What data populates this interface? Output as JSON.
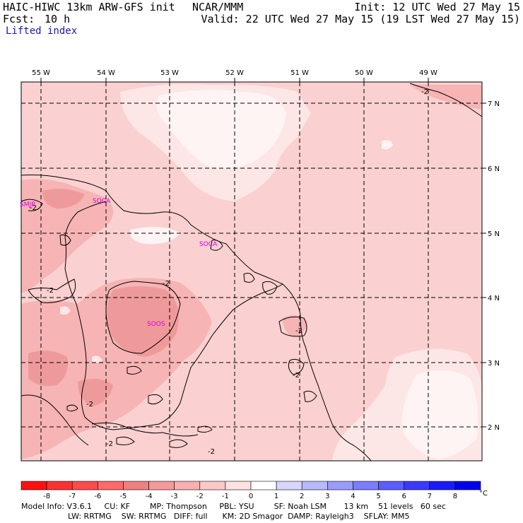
{
  "header": {
    "model": "HAIC-HIWC 13km ARW-GFS init",
    "org": "NCAR/MMM",
    "fcst_label": "Fcst:",
    "fcst_value": "10 h",
    "init": "Init: 12 UTC Wed 27 May 15",
    "valid": "Valid: 22 UTC Wed 27 May 15 (19 LST Wed 27 May 15)",
    "field": "Lifted index"
  },
  "map": {
    "lon_labels": [
      "55 W",
      "54 W",
      "53 W",
      "52 W",
      "51 W",
      "50 W",
      "49 W"
    ],
    "lat_labels": [
      "7 N",
      "6 N",
      "5 N",
      "4 N",
      "3 N",
      "2 N"
    ],
    "stations": [
      "SMJP",
      "SOCA",
      "SOCA",
      "SOOS"
    ],
    "contour_labels": [
      "-2",
      "-2",
      "-2",
      "-2",
      "-2",
      "-2",
      "-2",
      "-2",
      "-2"
    ]
  },
  "colorbar": {
    "labels": [
      "-8",
      "-7",
      "-6",
      "-5",
      "-4",
      "-3",
      "-2",
      "-1",
      "0",
      "1",
      "2",
      "3",
      "4",
      "5",
      "6",
      "7",
      "8"
    ],
    "unit": "°C",
    "colors": [
      "#ff1010",
      "#ff3030",
      "#ff4a4a",
      "#ff6a6a",
      "#f08080",
      "#f49a9a",
      "#f8b0b0",
      "#fcc8c8",
      "#ffe2e2",
      "#ffffff",
      "#d6d6ff",
      "#b8b8ff",
      "#9a9aff",
      "#7c7cff",
      "#5c5cff",
      "#3a3aff",
      "#1a1aff",
      "#0000f0"
    ]
  },
  "footer": {
    "line1": "Model Info: V3.6.1     CU: KF        MP: Thompson     PBL: YSU        SF: Noah LSM       13 km    51 levels   60 sec",
    "line2": "LW: RRTMG    SW: RRTMG   DIFF: full      KM: 2D Smagor  DAMP: Rayleigh3    SFLAY: MM5"
  },
  "colors": {
    "field_base": "#fbd0d0",
    "field_mid": "#f6b4b4",
    "field_strong": "#ef9a9a",
    "field_light": "#fde6e6",
    "field_white": "#fff4f4",
    "station_text": "#e000e0"
  }
}
